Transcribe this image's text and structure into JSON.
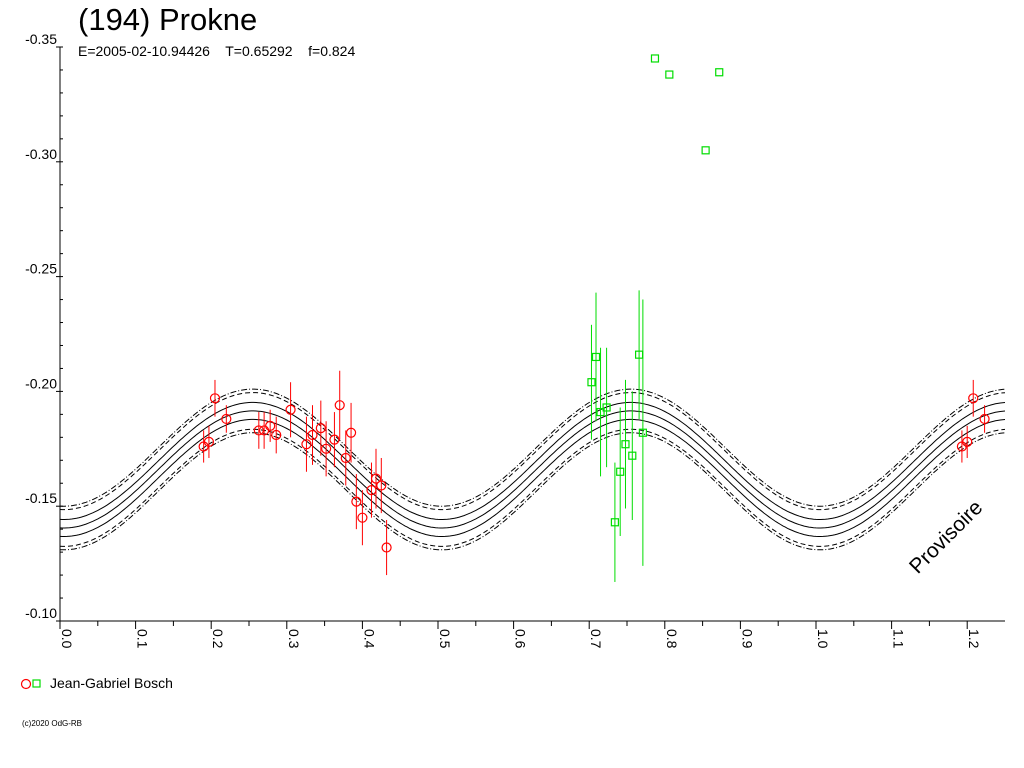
{
  "chart_data": {
    "type": "scatter",
    "title": "(194) Prokne",
    "subtitle": "E=2005-02-10.94426    T=0.65292    f=0.824",
    "xlim": [
      0.0,
      1.25
    ],
    "ylim": [
      -0.35,
      -0.1
    ],
    "x_ticks": [
      "0.0",
      "0.1",
      "0.2",
      "0.3",
      "0.4",
      "0.5",
      "0.6",
      "0.7",
      "0.8",
      "0.9",
      "1.0",
      "1.1",
      "1.2"
    ],
    "y_ticks": [
      "-0.35",
      "-0.30",
      "-0.25",
      "-0.20",
      "-0.15",
      "-0.10"
    ],
    "y_inverted": true,
    "grid": false,
    "watermark": "Provisoire",
    "model_curves": {
      "period_phase": 0.5,
      "center": -0.166,
      "amplitude": 0.0255,
      "peak_phase": 0.255,
      "bands": [
        {
          "style": "solid",
          "offset": 0.0
        },
        {
          "style": "solid",
          "offset": -0.0037
        },
        {
          "style": "solid",
          "offset": 0.0037
        },
        {
          "style": "dashed",
          "offset": -0.008
        },
        {
          "style": "dashed",
          "offset": 0.008
        },
        {
          "style": "dashdot",
          "offset": -0.0095
        },
        {
          "style": "dashdot",
          "offset": 0.0095
        }
      ]
    },
    "series": [
      {
        "name": "Jean-Gabriel Bosch",
        "color": "#ff0000",
        "marker": "circle",
        "points": [
          [
            0.19,
            -0.176,
            0.007
          ],
          [
            0.197,
            -0.178,
            0.007
          ],
          [
            0.205,
            -0.197,
            0.008
          ],
          [
            0.22,
            -0.188,
            0.006
          ],
          [
            0.263,
            -0.183,
            0.008
          ],
          [
            0.27,
            -0.183,
            0.008
          ],
          [
            0.278,
            -0.185,
            0.007
          ],
          [
            0.286,
            -0.181,
            0.008
          ],
          [
            0.305,
            -0.192,
            0.012
          ],
          [
            0.326,
            -0.177,
            0.012
          ],
          [
            0.334,
            -0.181,
            0.013
          ],
          [
            0.345,
            -0.184,
            0.012
          ],
          [
            0.352,
            -0.175,
            0.012
          ],
          [
            0.363,
            -0.179,
            0.012
          ],
          [
            0.37,
            -0.194,
            0.015
          ],
          [
            0.378,
            -0.171,
            0.012
          ],
          [
            0.385,
            -0.182,
            0.013
          ],
          [
            0.392,
            -0.152,
            0.012
          ],
          [
            0.4,
            -0.145,
            0.012
          ],
          [
            0.412,
            -0.157,
            0.012
          ],
          [
            0.418,
            -0.162,
            0.013
          ],
          [
            0.425,
            -0.159,
            0.012
          ],
          [
            0.432,
            -0.132,
            0.012
          ],
          [
            1.193,
            -0.176,
            0.007
          ],
          [
            1.2,
            -0.178,
            0.007
          ],
          [
            1.208,
            -0.197,
            0.008
          ],
          [
            1.223,
            -0.188,
            0.006
          ]
        ]
      },
      {
        "name": "",
        "color": "#00dd00",
        "marker": "square",
        "points": [
          [
            0.703,
            -0.204,
            0.025
          ],
          [
            0.709,
            -0.215,
            0.028
          ],
          [
            0.715,
            -0.191,
            0.028
          ],
          [
            0.723,
            -0.193,
            0.026
          ],
          [
            0.734,
            -0.143,
            0.026
          ],
          [
            0.741,
            -0.165,
            0.028
          ],
          [
            0.748,
            -0.177,
            0.028
          ],
          [
            0.757,
            -0.172,
            0.028
          ],
          [
            0.766,
            -0.216,
            0.028
          ],
          [
            0.771,
            -0.182,
            0.058
          ],
          [
            0.787,
            -0.345,
            0
          ],
          [
            0.806,
            -0.338,
            0
          ],
          [
            0.854,
            -0.305,
            0
          ],
          [
            0.872,
            -0.339,
            0
          ]
        ]
      }
    ]
  },
  "legend": {
    "label": "Jean-Gabriel Bosch"
  },
  "footer": {
    "copyright": "(c)2020 OdG-RB"
  }
}
